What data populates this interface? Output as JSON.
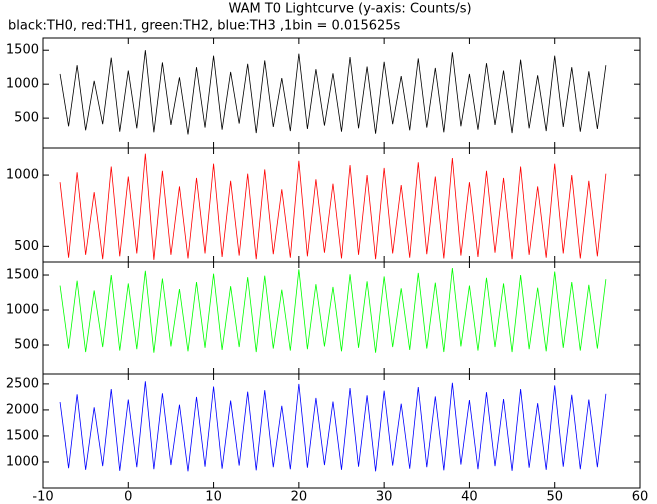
{
  "chart_data": [
    {
      "type": "line",
      "title": "WAM T0 Lightcurve (y-axis: Counts/s)",
      "subtitle": "black:TH0, red:TH1, green:TH2, blue:TH3 ,1bin = 0.015625s",
      "x": [
        -8,
        -7,
        -6,
        -5,
        -4,
        -3,
        -2,
        -1,
        0,
        1,
        2,
        3,
        4,
        5,
        6,
        7,
        8,
        9,
        10,
        11,
        12,
        13,
        14,
        15,
        16,
        17,
        18,
        19,
        20,
        21,
        22,
        23,
        24,
        25,
        26,
        27,
        28,
        29,
        30,
        31,
        32,
        33,
        34,
        35,
        36,
        37,
        38,
        39,
        40,
        41,
        42,
        43,
        44,
        45,
        46,
        47,
        48,
        49,
        50,
        51,
        52,
        53,
        54,
        55,
        56
      ],
      "values": [
        1150,
        380,
        1280,
        320,
        1050,
        410,
        1390,
        300,
        1200,
        350,
        1500,
        290,
        1320,
        400,
        1100,
        260,
        1250,
        360,
        1420,
        330,
        1180,
        420,
        1300,
        280,
        1350,
        370,
        1090,
        310,
        1450,
        340,
        1220,
        390,
        1160,
        300,
        1400,
        350,
        1260,
        270,
        1330,
        410,
        1120,
        320,
        1380,
        360,
        1240,
        290,
        1470,
        380,
        1150,
        330,
        1310,
        400,
        1200,
        280,
        1360,
        350,
        1130,
        310,
        1420,
        370,
        1250,
        300,
        1190,
        340,
        1280
      ],
      "color": "#000000",
      "xlim": [
        -10,
        60
      ],
      "xticks": [
        -10,
        0,
        10,
        20,
        30,
        40,
        50,
        60
      ],
      "ylim": [
        60,
        1680
      ],
      "yticks": [
        500,
        1000,
        1500
      ]
    },
    {
      "type": "line",
      "x": [
        -8,
        -7,
        -6,
        -5,
        -4,
        -3,
        -2,
        -1,
        0,
        1,
        2,
        3,
        4,
        5,
        6,
        7,
        8,
        9,
        10,
        11,
        12,
        13,
        14,
        15,
        16,
        17,
        18,
        19,
        20,
        21,
        22,
        23,
        24,
        25,
        26,
        27,
        28,
        29,
        30,
        31,
        32,
        33,
        34,
        35,
        36,
        37,
        38,
        39,
        40,
        41,
        42,
        43,
        44,
        45,
        46,
        47,
        48,
        49,
        50,
        51,
        52,
        53,
        54,
        55,
        56
      ],
      "values": [
        950,
        420,
        1020,
        440,
        880,
        410,
        1060,
        430,
        990,
        450,
        1150,
        405,
        1030,
        440,
        920,
        415,
        980,
        450,
        1080,
        425,
        960,
        435,
        1010,
        410,
        1040,
        445,
        900,
        420,
        1100,
        430,
        970,
        455,
        940,
        415,
        1070,
        440,
        1000,
        410,
        1050,
        450,
        930,
        420,
        1090,
        445,
        990,
        415,
        1120,
        435,
        950,
        425,
        1030,
        455,
        980,
        410,
        1060,
        440,
        920,
        420,
        1080,
        450,
        1000,
        415,
        960,
        430,
        1010
      ],
      "color": "#ff0000",
      "xlim": [
        -10,
        60
      ],
      "xticks": [
        -10,
        0,
        10,
        20,
        30,
        40,
        50,
        60
      ],
      "ylim": [
        390,
        1190
      ],
      "yticks": [
        500,
        1000
      ]
    },
    {
      "type": "line",
      "x": [
        -8,
        -7,
        -6,
        -5,
        -4,
        -3,
        -2,
        -1,
        0,
        1,
        2,
        3,
        4,
        5,
        6,
        7,
        8,
        9,
        10,
        11,
        12,
        13,
        14,
        15,
        16,
        17,
        18,
        19,
        20,
        21,
        22,
        23,
        24,
        25,
        26,
        27,
        28,
        29,
        30,
        31,
        32,
        33,
        34,
        35,
        36,
        37,
        38,
        39,
        40,
        41,
        42,
        43,
        44,
        45,
        46,
        47,
        48,
        49,
        50,
        51,
        52,
        53,
        54,
        55,
        56
      ],
      "values": [
        1350,
        450,
        1420,
        400,
        1280,
        470,
        1500,
        420,
        1380,
        440,
        1560,
        390,
        1450,
        480,
        1300,
        410,
        1400,
        460,
        1520,
        430,
        1340,
        470,
        1470,
        400,
        1490,
        450,
        1290,
        420,
        1580,
        440,
        1370,
        480,
        1330,
        410,
        1510,
        460,
        1410,
        390,
        1480,
        470,
        1310,
        430,
        1530,
        450,
        1390,
        400,
        1600,
        480,
        1350,
        420,
        1460,
        470,
        1380,
        400,
        1500,
        440,
        1320,
        410,
        1550,
        460,
        1400,
        420,
        1360,
        450,
        1440
      ],
      "color": "#00ff00",
      "xlim": [
        -10,
        60
      ],
      "xticks": [
        -10,
        0,
        10,
        20,
        30,
        40,
        50,
        60
      ],
      "ylim": [
        86,
        1686
      ],
      "yticks": [
        500,
        1000,
        1500
      ]
    },
    {
      "type": "line",
      "x": [
        -8,
        -7,
        -6,
        -5,
        -4,
        -3,
        -2,
        -1,
        0,
        1,
        2,
        3,
        4,
        5,
        6,
        7,
        8,
        9,
        10,
        11,
        12,
        13,
        14,
        15,
        16,
        17,
        18,
        19,
        20,
        21,
        22,
        23,
        24,
        25,
        26,
        27,
        28,
        29,
        30,
        31,
        32,
        33,
        34,
        35,
        36,
        37,
        38,
        39,
        40,
        41,
        42,
        43,
        44,
        45,
        46,
        47,
        48,
        49,
        50,
        51,
        52,
        53,
        54,
        55,
        56
      ],
      "values": [
        2150,
        880,
        2300,
        850,
        2050,
        920,
        2400,
        830,
        2200,
        900,
        2550,
        860,
        2320,
        940,
        2100,
        820,
        2250,
        910,
        2450,
        870,
        2180,
        930,
        2350,
        840,
        2380,
        900,
        2080,
        860,
        2500,
        890,
        2230,
        940,
        2160,
        850,
        2420,
        910,
        2280,
        820,
        2370,
        930,
        2120,
        870,
        2440,
        900,
        2260,
        840,
        2520,
        950,
        2190,
        860,
        2340,
        920,
        2210,
        830,
        2400,
        890,
        2130,
        850,
        2470,
        910,
        2290,
        860,
        2200,
        900,
        2310
      ],
      "color": "#0000ff",
      "xlim": [
        -10,
        60
      ],
      "xticks": [
        -10,
        0,
        10,
        20,
        30,
        40,
        50,
        60
      ],
      "ylim": [
        500,
        2690
      ],
      "yticks": [
        1000,
        1500,
        2000,
        2500
      ]
    }
  ]
}
